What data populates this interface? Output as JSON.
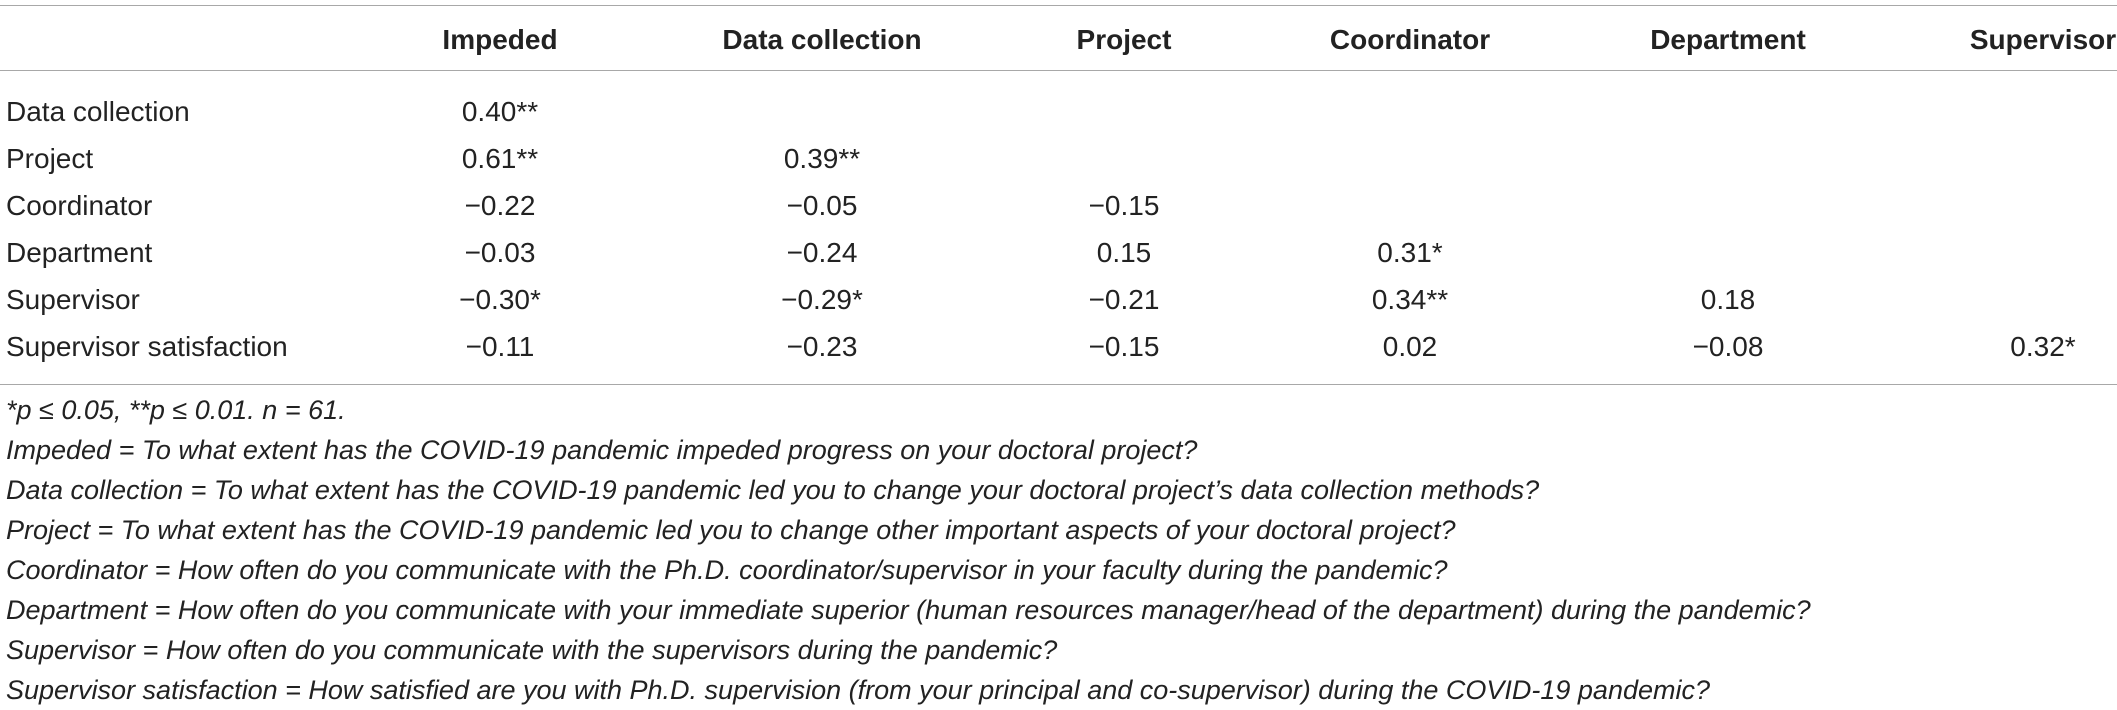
{
  "table": {
    "columns": [
      "Impeded",
      "Data collection",
      "Project",
      "Coordinator",
      "Department",
      "Supervisor"
    ],
    "rows": [
      {
        "label": "Data collection",
        "values": [
          "0.40**",
          "",
          "",
          "",
          "",
          ""
        ]
      },
      {
        "label": "Project",
        "values": [
          "0.61**",
          "0.39**",
          "",
          "",
          "",
          ""
        ]
      },
      {
        "label": "Coordinator",
        "values": [
          "−0.22",
          "−0.05",
          "−0.15",
          "",
          "",
          ""
        ]
      },
      {
        "label": "Department",
        "values": [
          "−0.03",
          "−0.24",
          "0.15",
          "0.31*",
          "",
          ""
        ]
      },
      {
        "label": "Supervisor",
        "values": [
          "−0.30*",
          "−0.29*",
          "−0.21",
          "0.34**",
          "0.18",
          ""
        ]
      },
      {
        "label": "Supervisor satisfaction",
        "values": [
          "−0.11",
          "−0.23",
          "−0.15",
          "0.02",
          "−0.08",
          "0.32*"
        ]
      }
    ]
  },
  "notes": [
    "*p ≤ 0.05, **p ≤ 0.01. n = 61.",
    "Impeded = To what extent has the COVID-19 pandemic impeded progress on your doctoral project?",
    "Data collection = To what extent has the COVID-19 pandemic led you to change your doctoral project’s data collection methods?",
    "Project = To what extent has the COVID-19 pandemic led you to change other important aspects of your doctoral project?",
    "Coordinator = How often do you communicate with the Ph.D. coordinator/supervisor in your faculty during the pandemic?",
    "Department = How often do you communicate with your immediate superior (human resources manager/head of the department) during the pandemic?",
    "Supervisor = How often do you communicate with the supervisors during the pandemic?",
    "Supervisor satisfaction = How satisfied are you with Ph.D. supervision (from your principal and co-supervisor) during the COVID-19 pandemic?"
  ]
}
